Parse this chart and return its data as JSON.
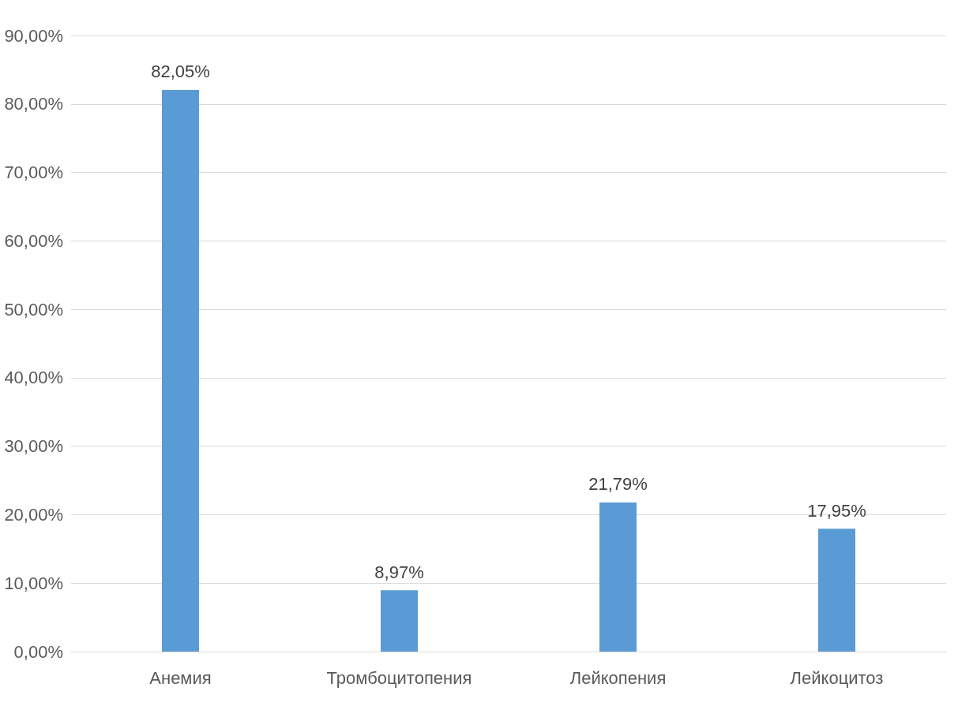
{
  "chart_data": {
    "type": "bar",
    "categories": [
      "Анемия",
      "Тромбоцитопения",
      "Лейкопения",
      "Лейкоцитоз"
    ],
    "values": [
      82.05,
      8.97,
      21.79,
      17.95
    ],
    "value_labels": [
      "82,05%",
      "8,97%",
      "21,79%",
      "17,95%"
    ],
    "color": "#5b9bd5",
    "ylim": [
      0,
      90
    ],
    "yticks": [
      {
        "value": 0,
        "label": "0,00%"
      },
      {
        "value": 10,
        "label": "10,00%"
      },
      {
        "value": 20,
        "label": "20,00%"
      },
      {
        "value": 30,
        "label": "30,00%"
      },
      {
        "value": 40,
        "label": "40,00%"
      },
      {
        "value": 50,
        "label": "50,00%"
      },
      {
        "value": 60,
        "label": "60,00%"
      },
      {
        "value": 70,
        "label": "70,00%"
      },
      {
        "value": 80,
        "label": "80,00%"
      },
      {
        "value": 90,
        "label": "90,00%"
      }
    ],
    "grid": "y"
  }
}
